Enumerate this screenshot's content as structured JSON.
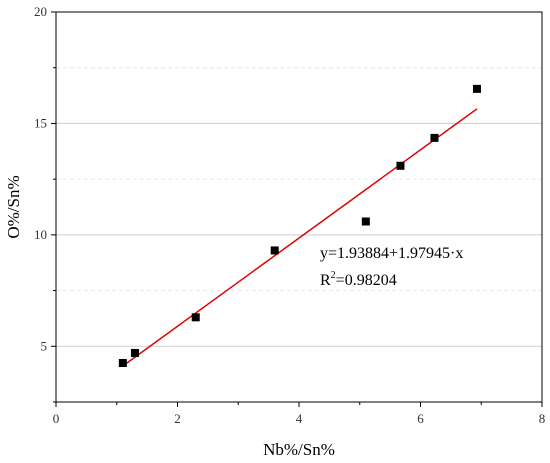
{
  "chart_data": {
    "type": "scatter",
    "title": "",
    "xlabel": "Nb%/Sn%",
    "ylabel": "O%/Sn%",
    "xlim": [
      0,
      8
    ],
    "ylim": [
      2.5,
      20
    ],
    "x_ticks": [
      0,
      2,
      4,
      6,
      8
    ],
    "y_ticks": [
      5,
      10,
      15,
      20
    ],
    "grid": "horizontal-dashed",
    "series": [
      {
        "points": [
          {
            "x": 1.1,
            "y": 4.25
          },
          {
            "x": 1.3,
            "y": 4.7
          },
          {
            "x": 2.3,
            "y": 6.3
          },
          {
            "x": 3.6,
            "y": 9.3
          },
          {
            "x": 5.1,
            "y": 10.6
          },
          {
            "x": 5.67,
            "y": 13.1
          },
          {
            "x": 6.23,
            "y": 14.35
          },
          {
            "x": 6.93,
            "y": 16.55
          }
        ],
        "marker": "square",
        "color": "#000000"
      }
    ],
    "fit": {
      "intercept": 1.93884,
      "slope": 1.97945,
      "x_range": [
        1.1,
        6.93
      ],
      "color": "#e00000"
    },
    "annotation": {
      "equation": "y=1.93884+1.97945·x",
      "r_label": "R",
      "r_sup": "2",
      "r_value": "=0.98204"
    }
  }
}
